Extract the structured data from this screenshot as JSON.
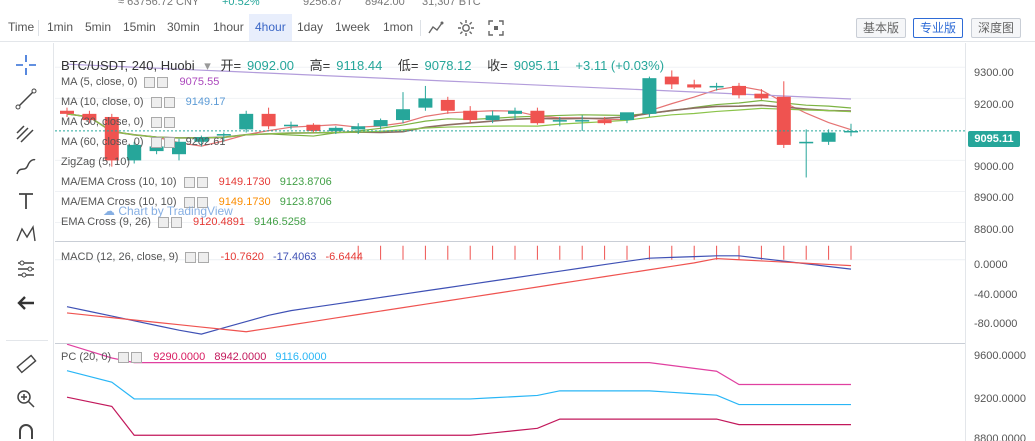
{
  "ticker": {
    "cny": "≈ 63756.72 CNY",
    "change": "+0.52%",
    "high": "9256.87",
    "low": "8942.00",
    "volume": "31,307 BTC"
  },
  "toolbar": {
    "time_label": "Time",
    "intervals": [
      "1min",
      "5min",
      "15min",
      "30min",
      "1hour",
      "4hour",
      "1day",
      "1week",
      "1mon"
    ],
    "active_interval": "4hour",
    "versions": [
      "基本版",
      "专业版",
      "深度图"
    ],
    "active_version": "专业版"
  },
  "symbol": {
    "title": "BTC/USDT, 240, Huobi",
    "open_label": "开=",
    "open": "9092.00",
    "high_label": "高=",
    "high": "9118.44",
    "low_label": "低=",
    "low": "9078.12",
    "close_label": "收=",
    "close": "9095.11",
    "change": "+3.11 (+0.03%)"
  },
  "legends": {
    "ma5": {
      "label": "MA (5, close, 0)",
      "value": "9075.55"
    },
    "ma10": {
      "label": "MA (10, close, 0)",
      "value": "9149.17"
    },
    "ma30": {
      "label": "MA (30, close, 0)",
      "value": ""
    },
    "ma60": {
      "label": "MA (60, close, 0)",
      "value": "9202.61"
    },
    "zigzag": {
      "label": "ZigZag (5, 10)"
    },
    "ema1": {
      "label": "MA/EMA Cross (10, 10)",
      "v1": "9149.1730",
      "v2": "9123.8706"
    },
    "ema2": {
      "label": "MA/EMA Cross (10, 10)",
      "v1": "9149.1730",
      "v2": "9123.8706"
    },
    "ema3": {
      "label": "EMA Cross (9, 26)",
      "v1": "9120.4891",
      "v2": "9146.5258"
    },
    "macd": {
      "label": "MACD (12, 26, close, 9)",
      "v1": "-10.7620",
      "v2": "-17.4063",
      "v3": "-6.6444"
    },
    "pc": {
      "label": "PC (20, 0)",
      "v1": "9290.0000",
      "v2": "8942.0000",
      "v3": "9116.0000"
    }
  },
  "watermark": "Chart by TradingView",
  "price_axis": {
    "main": [
      "9300.00",
      "9200.00",
      "9095.11",
      "9000.00",
      "8900.00",
      "8800.00"
    ],
    "current": "9095.11",
    "macd": [
      "0.0000",
      "-40.0000",
      "-80.0000"
    ],
    "pc": [
      "9600.0000",
      "9200.0000",
      "8800.0000"
    ]
  },
  "colors": {
    "up": "#26a69a",
    "down": "#ef5350",
    "accent": "#2e6bd6",
    "ma5": "#e57373",
    "ma10": "#7cb342",
    "ma30": "#8d6e63",
    "ma60": "#b39ddb",
    "macd_line": "#3f51b5",
    "signal_line": "#ef5350",
    "pc_upper": "#e040a0",
    "pc_lower": "#c2185b",
    "pc_mid": "#29b6f6"
  },
  "tools": [
    "crosshair-icon",
    "trend-line-icon",
    "fib-icon",
    "brush-icon",
    "text-icon",
    "pattern-icon",
    "measure-icon",
    "back-arrow-icon",
    "ruler-icon",
    "zoom-in-icon",
    "magnet-icon"
  ],
  "chart_data": {
    "type": "candlestick",
    "timeframe": "240",
    "candles": [
      {
        "o": 9160,
        "h": 9170,
        "l": 9140,
        "c": 9150
      },
      {
        "o": 9150,
        "h": 9160,
        "l": 9120,
        "c": 9130
      },
      {
        "o": 9140,
        "h": 9150,
        "l": 8980,
        "c": 9000
      },
      {
        "o": 9000,
        "h": 9060,
        "l": 8990,
        "c": 9050
      },
      {
        "o": 9030,
        "h": 9060,
        "l": 9020,
        "c": 9045
      },
      {
        "o": 9020,
        "h": 9070,
        "l": 9000,
        "c": 9060
      },
      {
        "o": 9060,
        "h": 9080,
        "l": 9045,
        "c": 9075
      },
      {
        "o": 9080,
        "h": 9090,
        "l": 9060,
        "c": 9085
      },
      {
        "o": 9100,
        "h": 9160,
        "l": 9090,
        "c": 9150
      },
      {
        "o": 9150,
        "h": 9170,
        "l": 9100,
        "c": 9110
      },
      {
        "o": 9110,
        "h": 9125,
        "l": 9100,
        "c": 9115
      },
      {
        "o": 9115,
        "h": 9120,
        "l": 9090,
        "c": 9095
      },
      {
        "o": 9095,
        "h": 9110,
        "l": 9085,
        "c": 9105
      },
      {
        "o": 9100,
        "h": 9120,
        "l": 9085,
        "c": 9110
      },
      {
        "o": 9110,
        "h": 9135,
        "l": 9100,
        "c": 9130
      },
      {
        "o": 9130,
        "h": 9220,
        "l": 9120,
        "c": 9165
      },
      {
        "o": 9170,
        "h": 9240,
        "l": 9160,
        "c": 9200
      },
      {
        "o": 9195,
        "h": 9205,
        "l": 9150,
        "c": 9160
      },
      {
        "o": 9160,
        "h": 9175,
        "l": 9120,
        "c": 9130
      },
      {
        "o": 9130,
        "h": 9160,
        "l": 9120,
        "c": 9145
      },
      {
        "o": 9150,
        "h": 9170,
        "l": 9130,
        "c": 9160
      },
      {
        "o": 9160,
        "h": 9170,
        "l": 9115,
        "c": 9120
      },
      {
        "o": 9125,
        "h": 9140,
        "l": 9110,
        "c": 9130
      },
      {
        "o": 9130,
        "h": 9145,
        "l": 9095,
        "c": 9130
      },
      {
        "o": 9130,
        "h": 9140,
        "l": 9115,
        "c": 9120
      },
      {
        "o": 9130,
        "h": 9150,
        "l": 9120,
        "c": 9155
      },
      {
        "o": 9150,
        "h": 9270,
        "l": 9140,
        "c": 9265
      },
      {
        "o": 9270,
        "h": 9290,
        "l": 9230,
        "c": 9245
      },
      {
        "o": 9245,
        "h": 9260,
        "l": 9230,
        "c": 9235
      },
      {
        "o": 9235,
        "h": 9250,
        "l": 9225,
        "c": 9240
      },
      {
        "o": 9240,
        "h": 9250,
        "l": 9200,
        "c": 9210
      },
      {
        "o": 9215,
        "h": 9230,
        "l": 9195,
        "c": 9200
      },
      {
        "o": 9205,
        "h": 9255,
        "l": 9040,
        "c": 9050
      },
      {
        "o": 9055,
        "h": 9100,
        "l": 8945,
        "c": 9060
      },
      {
        "o": 9060,
        "h": 9100,
        "l": 9050,
        "c": 9090
      },
      {
        "o": 9092,
        "h": 9118,
        "l": 9078,
        "c": 9095
      }
    ],
    "ylim": [
      8750,
      9330
    ],
    "macd_ylim": [
      -100,
      15
    ],
    "pc_ylim": [
      8800,
      9650
    ]
  }
}
